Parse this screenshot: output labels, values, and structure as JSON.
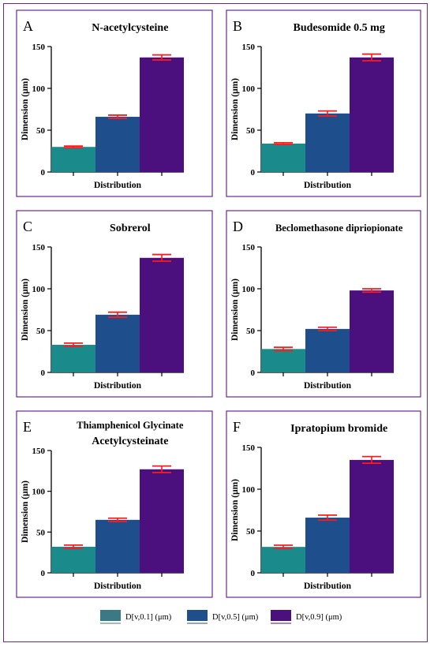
{
  "colors": {
    "frame": "#6a2a8c",
    "series": [
      "#1b8a8a",
      "#1f4e8c",
      "#4b0f7e"
    ],
    "error": "#ff1a1a"
  },
  "legend": {
    "items": [
      {
        "label": "D[v,0.1] (μm)",
        "color": "#3a7a86"
      },
      {
        "label": "D[v,0.5] (μm)",
        "color": "#1f4e8c"
      },
      {
        "label": "D[v,0.9] (μm)",
        "color": "#4b0f7e"
      }
    ]
  },
  "chart_data": [
    {
      "type": "bar",
      "letter": "A",
      "title": [
        "N-acetylcysteine"
      ],
      "xlabel": "Distribution",
      "ylabel": "Dimension (μm)",
      "ylim": [
        0,
        150
      ],
      "yticks": [
        0,
        50,
        100,
        150
      ],
      "values": [
        30,
        66,
        137
      ],
      "errors": [
        1,
        2,
        3
      ]
    },
    {
      "type": "bar",
      "letter": "B",
      "title": [
        "Budesomide 0.5 mg"
      ],
      "xlabel": "Distribution",
      "ylabel": "Dimension (μm)",
      "ylim": [
        0,
        150
      ],
      "yticks": [
        0,
        50,
        100,
        150
      ],
      "values": [
        34,
        70,
        137
      ],
      "errors": [
        1,
        3,
        4
      ]
    },
    {
      "type": "bar",
      "letter": "C",
      "title": [
        "Sobrerol"
      ],
      "xlabel": "Distribution",
      "ylabel": "Dimension (μm)",
      "ylim": [
        0,
        150
      ],
      "yticks": [
        0,
        50,
        100,
        150
      ],
      "values": [
        33,
        69,
        137
      ],
      "errors": [
        2,
        3,
        4
      ]
    },
    {
      "type": "bar",
      "letter": "D",
      "title": [
        "Beclomethasone dipriopionate"
      ],
      "xlabel": "Distribution",
      "ylabel": "Dimension (μm)",
      "ylim": [
        0,
        150
      ],
      "yticks": [
        0,
        50,
        100,
        150
      ],
      "values": [
        28,
        52,
        98
      ],
      "errors": [
        2,
        2,
        2
      ]
    },
    {
      "type": "bar",
      "letter": "E",
      "title": [
        "Thiamphenicol Glycinate",
        "Acetylcysteinate"
      ],
      "xlabel": "Distribution",
      "ylabel": "Dimension (μm)",
      "ylim": [
        0,
        150
      ],
      "yticks": [
        0,
        50,
        100,
        150
      ],
      "values": [
        32,
        65,
        127
      ],
      "errors": [
        2,
        2,
        4
      ]
    },
    {
      "type": "bar",
      "letter": "F",
      "title": [
        "Ipratopium bromide"
      ],
      "xlabel": "Distribution",
      "ylabel": "Dimension (μm)",
      "ylim": [
        0,
        150
      ],
      "yticks": [
        0,
        50,
        100,
        150
      ],
      "values": [
        31,
        66,
        135
      ],
      "errors": [
        2,
        3,
        4
      ]
    }
  ]
}
